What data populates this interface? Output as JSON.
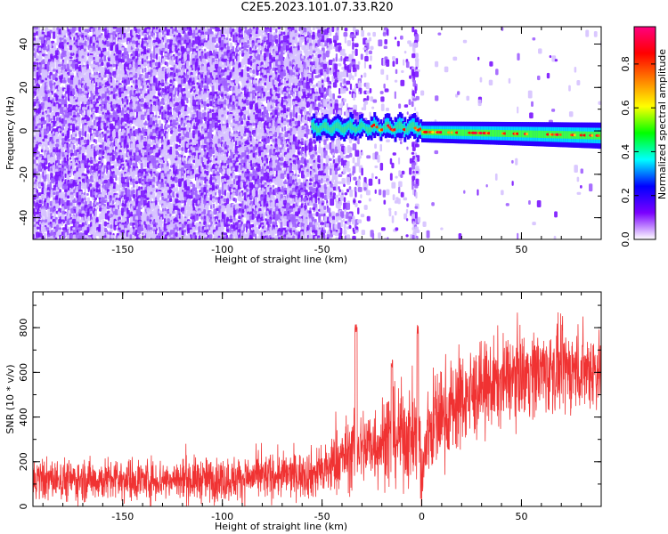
{
  "figure": {
    "title": "C2E5.2023.101.07.33.R20"
  },
  "chart_data": [
    {
      "type": "heatmap",
      "xlabel": "Height of straight line (km)",
      "ylabel": "Frequency (Hz)",
      "xlim": [
        -195,
        90
      ],
      "ylim": [
        -50,
        48
      ],
      "xticks": [
        -150,
        -100,
        -50,
        0,
        50
      ],
      "yticks": [
        -40,
        -20,
        0,
        20,
        40
      ],
      "colorbar": {
        "label": "Normalized spectral amplitude",
        "range": [
          0,
          0.97
        ],
        "ticks": [
          0.0,
          0.2,
          0.4,
          0.6,
          0.8
        ],
        "colormap": [
          "#ffffff",
          "#7a00ff",
          "#0000ff",
          "#00ffff",
          "#00ff00",
          "#ffff00",
          "#ff8000",
          "#ff0000",
          "#ff0080"
        ]
      },
      "signal_track": {
        "start_height": -55,
        "end_height": 90,
        "frequency_hz": [
          2,
          0,
          -2
        ],
        "peak_amplitude": 0.95
      },
      "grid": false
    },
    {
      "type": "line",
      "xlabel": "Height of straight line (km)",
      "ylabel": "SNR (10 * v/v)",
      "xlim": [
        -195,
        90
      ],
      "ylim": [
        0,
        960
      ],
      "xticks": [
        -150,
        -100,
        -50,
        0,
        50
      ],
      "yticks": [
        0,
        200,
        400,
        600,
        800
      ],
      "series": [
        {
          "color": "#f03232",
          "profile": [
            [
              -195,
              120
            ],
            [
              -100,
              120
            ],
            [
              -50,
              150
            ],
            [
              -35,
              250
            ],
            [
              -10,
              320
            ],
            [
              -1,
              300
            ],
            [
              0,
              80
            ],
            [
              3,
              350
            ],
            [
              20,
              480
            ],
            [
              50,
              600
            ],
            [
              90,
              620
            ]
          ],
          "noise_amplitude": [
            [
              -195,
              110
            ],
            [
              -60,
              120
            ],
            [
              -40,
              180
            ],
            [
              0,
              280
            ],
            [
              40,
              230
            ],
            [
              90,
              220
            ]
          ]
        }
      ],
      "grid": false
    }
  ]
}
